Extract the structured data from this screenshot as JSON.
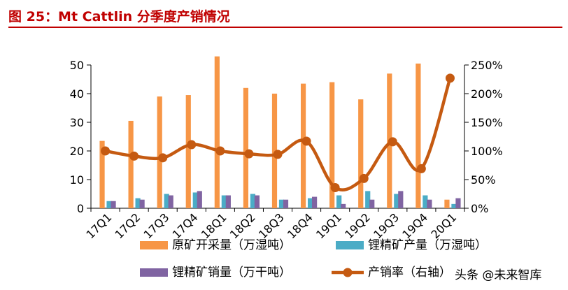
{
  "header": {
    "title": "图 25：Mt Cattlin 分季度产销情况"
  },
  "watermark": "头条 @未来智库",
  "chart_data": {
    "type": "bar",
    "categories": [
      "17Q1",
      "17Q2",
      "17Q3",
      "17Q4",
      "18Q1",
      "18Q2",
      "18Q3",
      "18Q4",
      "19Q1",
      "19Q2",
      "19Q3",
      "19Q4",
      "20Q1"
    ],
    "series": [
      {
        "name": "原矿开采量（万湿吨）",
        "type": "bar",
        "axis": "left",
        "color": "#f79646",
        "values": [
          23.5,
          30.5,
          39.0,
          39.5,
          53.0,
          42.0,
          40.0,
          43.5,
          44.0,
          38.0,
          47.0,
          50.5,
          3.0
        ]
      },
      {
        "name": "锂精矿产量（万湿吨）",
        "type": "bar",
        "axis": "left",
        "color": "#4bacc6",
        "values": [
          2.5,
          3.5,
          5.0,
          5.5,
          4.5,
          5.0,
          3.0,
          3.5,
          4.5,
          6.0,
          5.0,
          4.5,
          1.5
        ]
      },
      {
        "name": "锂精矿销量（万干吨）",
        "type": "bar",
        "axis": "left",
        "color": "#8064a2",
        "values": [
          2.5,
          3.0,
          4.5,
          6.0,
          4.5,
          4.5,
          3.0,
          4.0,
          1.5,
          3.0,
          6.0,
          3.0,
          3.5
        ]
      },
      {
        "name": "产销率（右轴）",
        "type": "line",
        "axis": "right",
        "color": "#c55a11",
        "values": [
          100,
          91,
          88,
          111,
          100,
          95,
          94,
          117,
          36,
          52,
          116,
          69,
          227
        ]
      }
    ],
    "left_axis": {
      "min": 0,
      "max": 50,
      "ticks": [
        0,
        10,
        20,
        30,
        40,
        50
      ]
    },
    "right_axis": {
      "min": 0,
      "max": 250,
      "ticks": [
        "0%",
        "50%",
        "100%",
        "150%",
        "200%",
        "250%"
      ]
    },
    "legend_placement": "bottom",
    "grid": false
  }
}
